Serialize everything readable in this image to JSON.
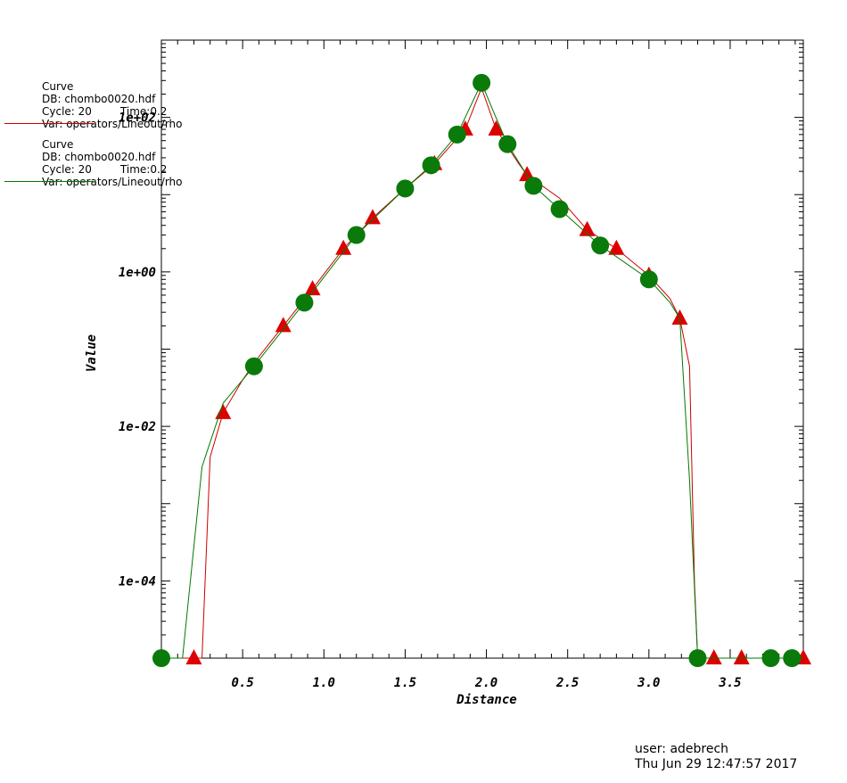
{
  "legend": [
    {
      "l1": "Curve",
      "l2": "DB: chombo0020.hdf",
      "l3a": "Cycle: 20",
      "l3b": "Time:0.2",
      "l4": "Var: operators/Lineout/rho",
      "color": "#cc0000"
    },
    {
      "l1": "Curve",
      "l2": "DB: chombo0020.hdf",
      "l3a": "Cycle: 20",
      "l3b": "Time:0.2",
      "l4": "Var: operators/Lineout/rho",
      "color": "#007a00"
    }
  ],
  "footer": {
    "user": "user: adebrech",
    "date": "Thu Jun 29 12:47:57 2017"
  },
  "chart_data": {
    "type": "line",
    "xlabel": "Distance",
    "ylabel": "Value",
    "xlim": [
      0.0,
      3.95
    ],
    "ylim_log10": [
      -5.0,
      3.0
    ],
    "yscale": "log",
    "x_ticks": [
      "0.5",
      "1.0",
      "1.5",
      "2.0",
      "2.5",
      "3.0",
      "3.5"
    ],
    "y_ticks": [
      "1e-04",
      "1e-02",
      "1e+00",
      "1e+02"
    ],
    "series": [
      {
        "color": "#cc0000",
        "marker": "triangle",
        "x": [
          0.0,
          0.2,
          0.25,
          0.3,
          0.38,
          0.5,
          0.6,
          0.75,
          0.93,
          1.12,
          1.3,
          1.5,
          1.68,
          1.87,
          1.97,
          2.06,
          2.2,
          2.25,
          2.45,
          2.62,
          2.8,
          3.0,
          3.13,
          3.19,
          3.25,
          3.28,
          3.3,
          3.4,
          3.57,
          3.75,
          3.95
        ],
        "y": [
          1e-05,
          1e-05,
          1e-05,
          0.004,
          0.015,
          0.04,
          0.08,
          0.2,
          0.6,
          2.0,
          5.0,
          12.0,
          25.0,
          70.0,
          240.0,
          70.0,
          25.0,
          18.0,
          9.0,
          3.5,
          2.0,
          0.9,
          0.45,
          0.25,
          0.06,
          0.0001,
          1e-05,
          1e-05,
          1e-05,
          1e-05,
          1e-05
        ]
      },
      {
        "color": "#007a00",
        "marker": "circle",
        "x": [
          0.0,
          0.13,
          0.25,
          0.38,
          0.57,
          0.88,
          1.2,
          1.5,
          1.66,
          1.82,
          1.97,
          2.05,
          2.13,
          2.29,
          2.45,
          2.7,
          3.0,
          3.13,
          3.19,
          3.25,
          3.3,
          3.5,
          3.75,
          3.88,
          3.95
        ],
        "y": [
          1e-05,
          1e-05,
          0.003,
          0.02,
          0.06,
          0.4,
          3.0,
          12.0,
          24.0,
          60.0,
          280.0,
          110.0,
          45.0,
          13.0,
          6.5,
          2.2,
          0.8,
          0.4,
          0.25,
          0.002,
          1e-05,
          1e-05,
          1e-05,
          1e-05,
          1e-05
        ],
        "marker_x": [
          0.0,
          0.57,
          0.88,
          1.2,
          1.5,
          1.66,
          1.82,
          1.97,
          2.13,
          2.29,
          2.45,
          2.7,
          3.0,
          3.3,
          3.75,
          3.88
        ]
      }
    ],
    "red_marker_x": [
      0.2,
      0.38,
      0.75,
      0.93,
      1.12,
      1.3,
      1.68,
      1.87,
      2.06,
      2.25,
      2.62,
      2.8,
      3.0,
      3.19,
      3.4,
      3.57,
      3.95
    ]
  }
}
